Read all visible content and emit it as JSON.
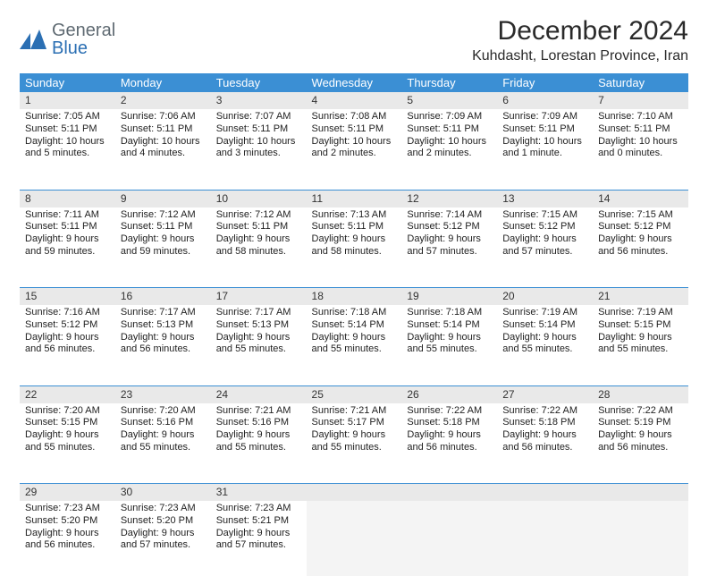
{
  "brand": {
    "word1": "General",
    "word2": "Blue",
    "mark_color": "#2b6fb3",
    "word1_color": "#5f6a72"
  },
  "title": "December 2024",
  "location": "Kuhdasht, Lorestan Province, Iran",
  "colors": {
    "header_bg": "#3b8fd4",
    "daynum_bg": "#e9e9e9",
    "rule": "#3b8fd4",
    "empty_bg": "#f4f4f4",
    "text": "#222222"
  },
  "weekdays": [
    "Sunday",
    "Monday",
    "Tuesday",
    "Wednesday",
    "Thursday",
    "Friday",
    "Saturday"
  ],
  "weeks": [
    [
      {
        "n": "1",
        "sr": "Sunrise: 7:05 AM",
        "ss": "Sunset: 5:11 PM",
        "dl": "Daylight: 10 hours and 5 minutes."
      },
      {
        "n": "2",
        "sr": "Sunrise: 7:06 AM",
        "ss": "Sunset: 5:11 PM",
        "dl": "Daylight: 10 hours and 4 minutes."
      },
      {
        "n": "3",
        "sr": "Sunrise: 7:07 AM",
        "ss": "Sunset: 5:11 PM",
        "dl": "Daylight: 10 hours and 3 minutes."
      },
      {
        "n": "4",
        "sr": "Sunrise: 7:08 AM",
        "ss": "Sunset: 5:11 PM",
        "dl": "Daylight: 10 hours and 2 minutes."
      },
      {
        "n": "5",
        "sr": "Sunrise: 7:09 AM",
        "ss": "Sunset: 5:11 PM",
        "dl": "Daylight: 10 hours and 2 minutes."
      },
      {
        "n": "6",
        "sr": "Sunrise: 7:09 AM",
        "ss": "Sunset: 5:11 PM",
        "dl": "Daylight: 10 hours and 1 minute."
      },
      {
        "n": "7",
        "sr": "Sunrise: 7:10 AM",
        "ss": "Sunset: 5:11 PM",
        "dl": "Daylight: 10 hours and 0 minutes."
      }
    ],
    [
      {
        "n": "8",
        "sr": "Sunrise: 7:11 AM",
        "ss": "Sunset: 5:11 PM",
        "dl": "Daylight: 9 hours and 59 minutes."
      },
      {
        "n": "9",
        "sr": "Sunrise: 7:12 AM",
        "ss": "Sunset: 5:11 PM",
        "dl": "Daylight: 9 hours and 59 minutes."
      },
      {
        "n": "10",
        "sr": "Sunrise: 7:12 AM",
        "ss": "Sunset: 5:11 PM",
        "dl": "Daylight: 9 hours and 58 minutes."
      },
      {
        "n": "11",
        "sr": "Sunrise: 7:13 AM",
        "ss": "Sunset: 5:11 PM",
        "dl": "Daylight: 9 hours and 58 minutes."
      },
      {
        "n": "12",
        "sr": "Sunrise: 7:14 AM",
        "ss": "Sunset: 5:12 PM",
        "dl": "Daylight: 9 hours and 57 minutes."
      },
      {
        "n": "13",
        "sr": "Sunrise: 7:15 AM",
        "ss": "Sunset: 5:12 PM",
        "dl": "Daylight: 9 hours and 57 minutes."
      },
      {
        "n": "14",
        "sr": "Sunrise: 7:15 AM",
        "ss": "Sunset: 5:12 PM",
        "dl": "Daylight: 9 hours and 56 minutes."
      }
    ],
    [
      {
        "n": "15",
        "sr": "Sunrise: 7:16 AM",
        "ss": "Sunset: 5:12 PM",
        "dl": "Daylight: 9 hours and 56 minutes."
      },
      {
        "n": "16",
        "sr": "Sunrise: 7:17 AM",
        "ss": "Sunset: 5:13 PM",
        "dl": "Daylight: 9 hours and 56 minutes."
      },
      {
        "n": "17",
        "sr": "Sunrise: 7:17 AM",
        "ss": "Sunset: 5:13 PM",
        "dl": "Daylight: 9 hours and 55 minutes."
      },
      {
        "n": "18",
        "sr": "Sunrise: 7:18 AM",
        "ss": "Sunset: 5:14 PM",
        "dl": "Daylight: 9 hours and 55 minutes."
      },
      {
        "n": "19",
        "sr": "Sunrise: 7:18 AM",
        "ss": "Sunset: 5:14 PM",
        "dl": "Daylight: 9 hours and 55 minutes."
      },
      {
        "n": "20",
        "sr": "Sunrise: 7:19 AM",
        "ss": "Sunset: 5:14 PM",
        "dl": "Daylight: 9 hours and 55 minutes."
      },
      {
        "n": "21",
        "sr": "Sunrise: 7:19 AM",
        "ss": "Sunset: 5:15 PM",
        "dl": "Daylight: 9 hours and 55 minutes."
      }
    ],
    [
      {
        "n": "22",
        "sr": "Sunrise: 7:20 AM",
        "ss": "Sunset: 5:15 PM",
        "dl": "Daylight: 9 hours and 55 minutes."
      },
      {
        "n": "23",
        "sr": "Sunrise: 7:20 AM",
        "ss": "Sunset: 5:16 PM",
        "dl": "Daylight: 9 hours and 55 minutes."
      },
      {
        "n": "24",
        "sr": "Sunrise: 7:21 AM",
        "ss": "Sunset: 5:16 PM",
        "dl": "Daylight: 9 hours and 55 minutes."
      },
      {
        "n": "25",
        "sr": "Sunrise: 7:21 AM",
        "ss": "Sunset: 5:17 PM",
        "dl": "Daylight: 9 hours and 55 minutes."
      },
      {
        "n": "26",
        "sr": "Sunrise: 7:22 AM",
        "ss": "Sunset: 5:18 PM",
        "dl": "Daylight: 9 hours and 56 minutes."
      },
      {
        "n": "27",
        "sr": "Sunrise: 7:22 AM",
        "ss": "Sunset: 5:18 PM",
        "dl": "Daylight: 9 hours and 56 minutes."
      },
      {
        "n": "28",
        "sr": "Sunrise: 7:22 AM",
        "ss": "Sunset: 5:19 PM",
        "dl": "Daylight: 9 hours and 56 minutes."
      }
    ],
    [
      {
        "n": "29",
        "sr": "Sunrise: 7:23 AM",
        "ss": "Sunset: 5:20 PM",
        "dl": "Daylight: 9 hours and 56 minutes."
      },
      {
        "n": "30",
        "sr": "Sunrise: 7:23 AM",
        "ss": "Sunset: 5:20 PM",
        "dl": "Daylight: 9 hours and 57 minutes."
      },
      {
        "n": "31",
        "sr": "Sunrise: 7:23 AM",
        "ss": "Sunset: 5:21 PM",
        "dl": "Daylight: 9 hours and 57 minutes."
      },
      null,
      null,
      null,
      null
    ]
  ]
}
